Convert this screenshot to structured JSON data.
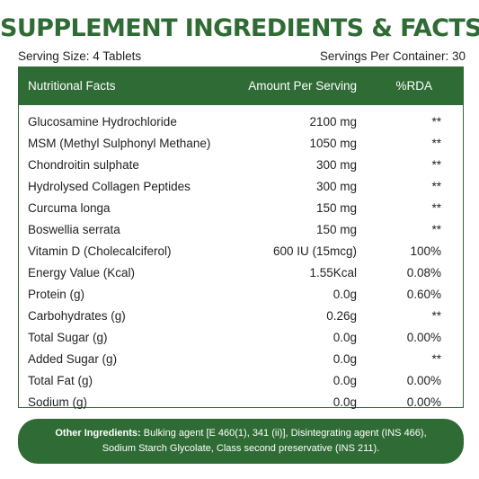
{
  "title": "SUPPLEMENT INGREDIENTS & FACTS",
  "serving_size": "Serving Size: 4 Tablets",
  "servings_per_container": "Servings Per Container: 30",
  "table": {
    "headers": {
      "name": "Nutritional Facts",
      "amount": "Amount Per Serving",
      "rda": "%RDA"
    },
    "rows": [
      {
        "name": "Glucosamine Hydrochloride",
        "amount": "2100 mg",
        "rda": "**"
      },
      {
        "name": "MSM (Methyl Sulphonyl Methane)",
        "amount": "1050 mg",
        "rda": "**"
      },
      {
        "name": "Chondroitin sulphate",
        "amount": "300 mg",
        "rda": "**"
      },
      {
        "name": "Hydrolysed Collagen Peptides",
        "amount": "300 mg",
        "rda": "**"
      },
      {
        "name": "Curcuma longa",
        "amount": "150 mg",
        "rda": "**"
      },
      {
        "name": "Boswellia serrata",
        "amount": "150 mg",
        "rda": "**"
      },
      {
        "name": "Vitamin D (Cholecalciferol)",
        "amount": "600 IU (15mcg)",
        "rda": "100%"
      },
      {
        "name": "Energy Value (Kcal)",
        "amount": "1.55Kcal",
        "rda": "0.08%"
      },
      {
        "name": "Protein (g)",
        "amount": "0.0g",
        "rda": "0.60%"
      },
      {
        "name": "Carbohydrates (g)",
        "amount": "0.26g",
        "rda": "**"
      },
      {
        "name": "Total Sugar (g)",
        "amount": "0.0g",
        "rda": "0.00%"
      },
      {
        "name": "Added Sugar (g)",
        "amount": "0.0g",
        "rda": "**"
      },
      {
        "name": "Total Fat (g)",
        "amount": "0.0g",
        "rda": "0.00%"
      },
      {
        "name": "Sodium (g)",
        "amount": "0.0g",
        "rda": "0.00%"
      }
    ]
  },
  "other_ingredients": {
    "label": "Other Ingredients:",
    "line1": " Bulking agent [E 460(1), 341 (ii)], Disintegrating agent (INS 466),",
    "line2": "Sodium Starch Glycolate, Class second preservative (INS 211)."
  },
  "colors": {
    "brand_green": "#2f6b34",
    "text": "#222222",
    "background": "#ffffff"
  }
}
